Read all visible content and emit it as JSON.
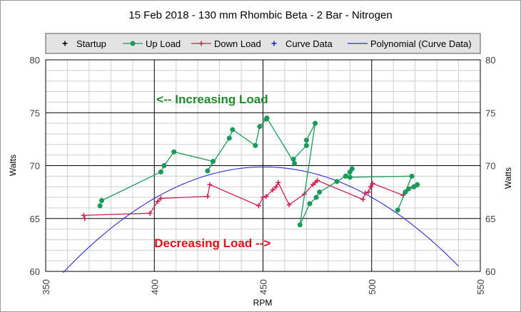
{
  "chart_data": {
    "type": "scatter",
    "title": "15 Feb 2018 - 130 mm Rhombic Beta - 2 Bar - Nitrogen",
    "xlabel": "RPM",
    "ylabel": "Watts",
    "ylabel_right": "Watts",
    "xlim": [
      350,
      550
    ],
    "ylim": [
      60,
      80
    ],
    "x_ticks": [
      350,
      400,
      450,
      500,
      550
    ],
    "y_ticks": [
      60,
      65,
      70,
      75,
      80
    ],
    "grid": true,
    "legend_position": "top",
    "annotations": [
      {
        "text": "<-- Increasing Load",
        "x": 401,
        "y": 75.9,
        "color": "#1e8a2a"
      },
      {
        "text": "Decreasing Load -->",
        "x": 400,
        "y": 62.3,
        "color": "#e0101a"
      }
    ],
    "series": [
      {
        "name": "Startup",
        "color": "#000000",
        "marker": "plus",
        "line": false,
        "points": []
      },
      {
        "name": "Up Load",
        "color": "#1a9a5a",
        "marker": "dot",
        "line": true,
        "points": [
          [
            375.0,
            66.2
          ],
          [
            375.8,
            66.7
          ],
          [
            403.0,
            69.4
          ],
          [
            404.5,
            70.0
          ],
          [
            409.0,
            71.3
          ],
          [
            427.0,
            70.4
          ],
          [
            424.5,
            69.5
          ],
          [
            434.5,
            72.6
          ],
          [
            436.0,
            73.4
          ],
          [
            446.5,
            71.9
          ],
          [
            448.5,
            73.7
          ],
          [
            451.5,
            74.4
          ],
          [
            451.8,
            74.5
          ],
          [
            464.5,
            70.2
          ],
          [
            464.0,
            70.6
          ],
          [
            470.0,
            71.9
          ],
          [
            470.0,
            72.4
          ],
          [
            474.0,
            74.0
          ],
          [
            467.0,
            64.4
          ],
          [
            471.5,
            66.4
          ],
          [
            474.5,
            67.0
          ],
          [
            476.0,
            67.5
          ],
          [
            484.0,
            68.5
          ],
          [
            488.0,
            69.0
          ],
          [
            490.0,
            69.4
          ],
          [
            491.0,
            69.7
          ],
          [
            490.0,
            68.9
          ],
          [
            518.5,
            69.0
          ],
          [
            512.0,
            65.8
          ],
          [
            515.5,
            67.5
          ],
          [
            517.0,
            67.8
          ],
          [
            519.5,
            68.0
          ],
          [
            521.0,
            68.2
          ]
        ]
      },
      {
        "name": "Down Load",
        "color": "#d02050",
        "marker": "plus",
        "line": true,
        "points": [
          [
            368.0,
            65.0
          ],
          [
            367.5,
            65.3
          ],
          [
            398.0,
            65.5
          ],
          [
            401.5,
            66.6
          ],
          [
            403.0,
            66.9
          ],
          [
            424.5,
            67.1
          ],
          [
            425.5,
            68.2
          ],
          [
            448.0,
            66.2
          ],
          [
            450.0,
            67.0
          ],
          [
            451.5,
            67.1
          ],
          [
            454.5,
            67.7
          ],
          [
            456.0,
            68.0
          ],
          [
            457.0,
            68.4
          ],
          [
            462.0,
            66.3
          ],
          [
            469.0,
            67.3
          ],
          [
            473.0,
            68.2
          ],
          [
            474.0,
            68.4
          ],
          [
            475.0,
            68.6
          ],
          [
            496.0,
            66.8
          ],
          [
            497.0,
            67.4
          ],
          [
            498.5,
            67.5
          ],
          [
            499.5,
            68.0
          ],
          [
            500.5,
            68.3
          ],
          [
            514.5,
            67.2
          ],
          [
            519.0,
            68.0
          ],
          [
            521.0,
            68.2
          ]
        ]
      },
      {
        "name": "Curve Data",
        "color": "#1a1ac8",
        "marker": "plus",
        "line": false,
        "points": []
      },
      {
        "name": "Polynomial (Curve Data)",
        "color": "#2a2ad2",
        "marker": "none",
        "line": true,
        "trend_coeffs": [
          -0.00117,
          1.054,
          -167.5
        ],
        "x_range": [
          358,
          540
        ]
      }
    ]
  }
}
